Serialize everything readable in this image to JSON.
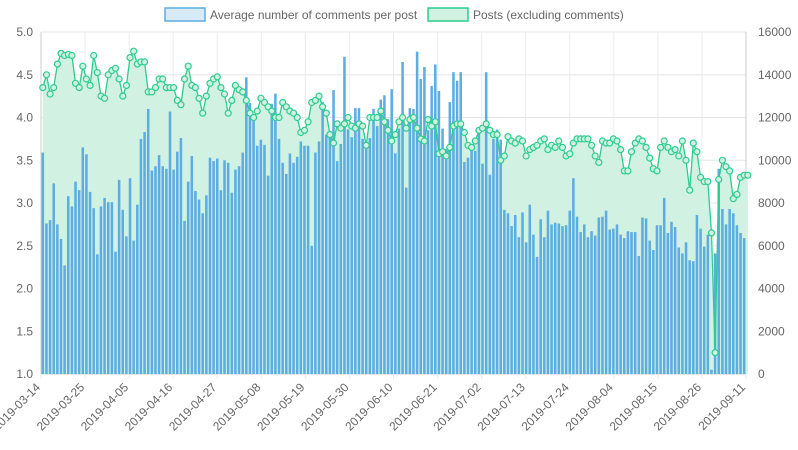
{
  "chart_data": {
    "type": "bar+line",
    "title": "",
    "legend_position": "top",
    "grid": true,
    "series": [
      {
        "name": "Average number of comments per post",
        "type": "bar",
        "axis": "left",
        "color": "#5dade2",
        "legend_fill": "#d6eaf8",
        "values": [
          3.59,
          2.76,
          2.8,
          3.23,
          2.75,
          2.58,
          2.27,
          3.08,
          2.96,
          3.25,
          3.15,
          3.65,
          3.57,
          3.13,
          2.94,
          2.4,
          2.96,
          3.06,
          3.01,
          3.01,
          2.43,
          3.27,
          2.92,
          2.61,
          3.29,
          2.56,
          2.98,
          3.75,
          3.83,
          4.1,
          3.38,
          3.43,
          3.56,
          3.43,
          3.4,
          4.07,
          3.39,
          3.6,
          3.76,
          2.79,
          3.25,
          3.55,
          3.14,
          3.04,
          2.88,
          3.09,
          3.53,
          3.49,
          3.52,
          3.15,
          3.5,
          3.47,
          3.12,
          3.39,
          3.43,
          3.59,
          4.47,
          4.17,
          4.03,
          3.67,
          3.74,
          3.68,
          3.32,
          4.16,
          4.28,
          3.75,
          3.47,
          3.34,
          3.58,
          3.47,
          3.54,
          3.72,
          3.67,
          3.67,
          2.5,
          3.59,
          3.72,
          4.18,
          3.8,
          3.84,
          4.32,
          3.49,
          3.69,
          4.71,
          3.86,
          3.77,
          4.11,
          4.11,
          3.75,
          3.68,
          3.76,
          4.1,
          3.9,
          4.21,
          4.26,
          3.98,
          4.33,
          3.58,
          3.87,
          4.65,
          3.18,
          4.11,
          4.1,
          4.77,
          4.45,
          4.59,
          3.85,
          4.37,
          4.62,
          4.31,
          3.87,
          3.63,
          4.18,
          4.53,
          4.43,
          4.53,
          3.48,
          3.53,
          3.66,
          3.61,
          3.82,
          3.46,
          4.53,
          3.33,
          3.75,
          3.86,
          3.74,
          2.92,
          2.88,
          2.73,
          2.86,
          2.6,
          2.89,
          2.54,
          2.98,
          2.63,
          2.37,
          2.81,
          2.6,
          2.91,
          2.75,
          2.77,
          2.76,
          2.73,
          2.74,
          2.91,
          3.29,
          2.84,
          2.66,
          2.75,
          2.6,
          2.67,
          2.62,
          2.83,
          2.84,
          2.91,
          2.69,
          2.7,
          2.75,
          2.63,
          2.59,
          2.67,
          2.66,
          2.66,
          2.38,
          2.83,
          2.82,
          2.56,
          2.45,
          2.74,
          2.74,
          3.06,
          2.65,
          2.78,
          2.72,
          2.48,
          2.41,
          2.54,
          2.33,
          2.32,
          2.86,
          2.7,
          2.49,
          2.63,
          1.05,
          2.41,
          3.4,
          2.93,
          2.75,
          2.93,
          2.88,
          2.74,
          2.65,
          2.59
        ]
      },
      {
        "name": "Posts (excluding comments)",
        "type": "line",
        "axis": "right",
        "color": "#2ecc8f",
        "fill": "#d1f2e2",
        "values": [
          13400,
          14000,
          13100,
          13400,
          14500,
          15000,
          14900,
          14950,
          14900,
          13600,
          13400,
          14400,
          13800,
          13500,
          14900,
          14100,
          13000,
          12900,
          14000,
          14200,
          14300,
          13800,
          13000,
          13500,
          14800,
          15100,
          14500,
          14600,
          14600,
          13200,
          13200,
          13400,
          13800,
          13800,
          13400,
          13400,
          13400,
          12800,
          12600,
          13800,
          14400,
          13500,
          13400,
          12900,
          12200,
          13000,
          13600,
          13800,
          13900,
          13400,
          13100,
          12200,
          12800,
          13500,
          13300,
          13200,
          12800,
          12200,
          12000,
          12300,
          12900,
          12700,
          12500,
          12300,
          12000,
          12000,
          12700,
          12500,
          12300,
          12200,
          12000,
          11300,
          11400,
          11800,
          12700,
          12800,
          13000,
          12500,
          12200,
          11200,
          10800,
          11700,
          11500,
          11700,
          12000,
          11600,
          11500,
          11700,
          11600,
          10700,
          12000,
          12000,
          12000,
          12300,
          11800,
          11400,
          10900,
          11200,
          11800,
          12000,
          11500,
          11900,
          12000,
          11500,
          11000,
          10900,
          11900,
          11600,
          11800,
          10300,
          10400,
          10200,
          10600,
          11600,
          11700,
          11700,
          11300,
          10700,
          10600,
          10900,
          11400,
          11500,
          11700,
          11400,
          11200,
          11200,
          10000,
          10200,
          11100,
          10900,
          10800,
          11000,
          10900,
          10200,
          10500,
          10600,
          10700,
          10900,
          11000,
          10500,
          10700,
          10600,
          10900,
          10600,
          10200,
          10300,
          10800,
          11000,
          11000,
          11000,
          11000,
          10700,
          10200,
          9900,
          10900,
          10800,
          10800,
          11000,
          10900,
          10500,
          9500,
          9500,
          10400,
          10800,
          11000,
          10900,
          10600,
          10100,
          9600,
          9500,
          10600,
          10900,
          10600,
          10400,
          10500,
          10200,
          10900,
          10000,
          8600,
          10800,
          10400,
          9200,
          9000,
          9000,
          6600,
          1000,
          9100,
          10000,
          9700,
          9500,
          8200,
          8400,
          9200,
          9300,
          9300
        ]
      }
    ],
    "x_tick_labels": [
      "2019-03-14",
      "2019-03-25",
      "2019-04-05",
      "2019-04-16",
      "2019-04-27",
      "2019-05-08",
      "2019-05-19",
      "2019-05-30",
      "2019-06-10",
      "2019-06-21",
      "2019-07-02",
      "2019-07-13",
      "2019-07-24",
      "2019-08-04",
      "2019-08-15",
      "2019-08-26",
      "2019-09-11"
    ],
    "y_left": {
      "min": 1.0,
      "max": 5.0,
      "ticks": [
        "1.0",
        "1.5",
        "2.0",
        "2.5",
        "3.0",
        "3.5",
        "4.0",
        "4.5",
        "5.0"
      ]
    },
    "y_right": {
      "min": 0,
      "max": 16000,
      "ticks": [
        "0",
        "2000",
        "4000",
        "6000",
        "8000",
        "10000",
        "12000",
        "14000",
        "16000"
      ]
    }
  }
}
